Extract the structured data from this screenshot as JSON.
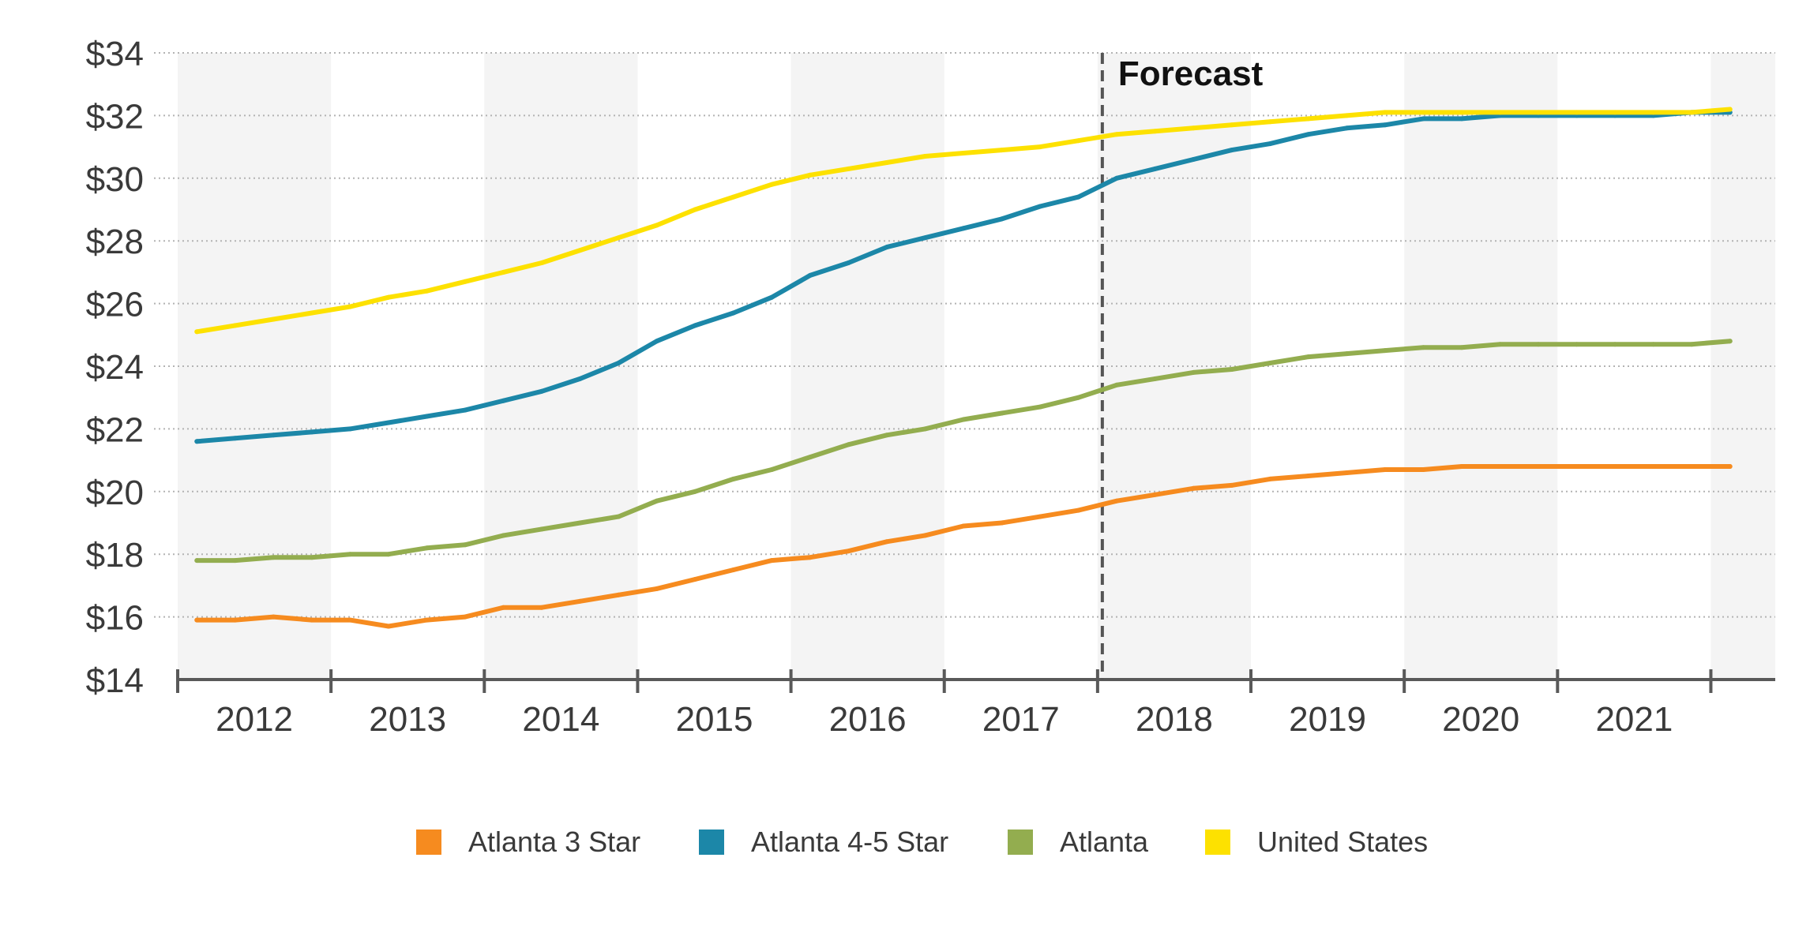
{
  "chart_data": {
    "type": "line",
    "xlim": [
      2012,
      2022.42
    ],
    "ylim": [
      14,
      34
    ],
    "grid": true,
    "alternating_year_shading": true,
    "legend": "bottom-center",
    "y_ticks": [
      14,
      16,
      18,
      20,
      22,
      24,
      26,
      28,
      30,
      32,
      34
    ],
    "y_tick_labels": [
      "$14",
      "$16",
      "$18",
      "$20",
      "$22",
      "$24",
      "$26",
      "$28",
      "$30",
      "$32",
      "$34"
    ],
    "x_tick_labels": [
      "2012",
      "2013",
      "2014",
      "2015",
      "2016",
      "2017",
      "2018",
      "2019",
      "2020",
      "2021"
    ],
    "forecast": {
      "label": "Forecast",
      "x": 2018
    },
    "x": [
      2012,
      2012.25,
      2012.5,
      2012.75,
      2013,
      2013.25,
      2013.5,
      2013.75,
      2014,
      2014.25,
      2014.5,
      2014.75,
      2015,
      2015.25,
      2015.5,
      2015.75,
      2016,
      2016.25,
      2016.5,
      2016.75,
      2017,
      2017.25,
      2017.5,
      2017.75,
      2018,
      2018.25,
      2018.5,
      2018.75,
      2019,
      2019.25,
      2019.5,
      2019.75,
      2020,
      2020.25,
      2020.5,
      2020.75,
      2021,
      2021.25,
      2021.5,
      2021.75,
      2022
    ],
    "series": [
      {
        "name": "Atlanta 3 Star",
        "color": "#F68B1F",
        "values": [
          15.9,
          15.9,
          16.0,
          15.9,
          15.9,
          15.7,
          15.9,
          16.0,
          16.3,
          16.3,
          16.5,
          16.7,
          16.9,
          17.2,
          17.5,
          17.8,
          17.9,
          18.1,
          18.4,
          18.6,
          18.9,
          19.0,
          19.2,
          19.4,
          19.7,
          19.9,
          20.1,
          20.2,
          20.4,
          20.5,
          20.6,
          20.7,
          20.7,
          20.8,
          20.8,
          20.8,
          20.8,
          20.8,
          20.8,
          20.8,
          20.8
        ]
      },
      {
        "name": "Atlanta 4-5 Star",
        "color": "#1C87A8",
        "values": [
          21.6,
          21.7,
          21.8,
          21.9,
          22.0,
          22.2,
          22.4,
          22.6,
          22.9,
          23.2,
          23.6,
          24.1,
          24.8,
          25.3,
          25.7,
          26.2,
          26.9,
          27.3,
          27.8,
          28.1,
          28.4,
          28.7,
          29.1,
          29.4,
          30.0,
          30.3,
          30.6,
          30.9,
          31.1,
          31.4,
          31.6,
          31.7,
          31.9,
          31.9,
          32.0,
          32.0,
          32.0,
          32.0,
          32.0,
          32.1,
          32.1
        ]
      },
      {
        "name": "Atlanta",
        "color": "#93AD4F",
        "values": [
          17.8,
          17.8,
          17.9,
          17.9,
          18.0,
          18.0,
          18.2,
          18.3,
          18.6,
          18.8,
          19.0,
          19.2,
          19.7,
          20.0,
          20.4,
          20.7,
          21.1,
          21.5,
          21.8,
          22.0,
          22.3,
          22.5,
          22.7,
          23.0,
          23.4,
          23.6,
          23.8,
          23.9,
          24.1,
          24.3,
          24.4,
          24.5,
          24.6,
          24.6,
          24.7,
          24.7,
          24.7,
          24.7,
          24.7,
          24.7,
          24.8
        ]
      },
      {
        "name": "United States",
        "color": "#FDE100",
        "values": [
          25.1,
          25.3,
          25.5,
          25.7,
          25.9,
          26.2,
          26.4,
          26.7,
          27.0,
          27.3,
          27.7,
          28.1,
          28.5,
          29.0,
          29.4,
          29.8,
          30.1,
          30.3,
          30.5,
          30.7,
          30.8,
          30.9,
          31.0,
          31.2,
          31.4,
          31.5,
          31.6,
          31.7,
          31.8,
          31.9,
          32.0,
          32.1,
          32.1,
          32.1,
          32.1,
          32.1,
          32.1,
          32.1,
          32.1,
          32.1,
          32.2
        ]
      }
    ]
  }
}
